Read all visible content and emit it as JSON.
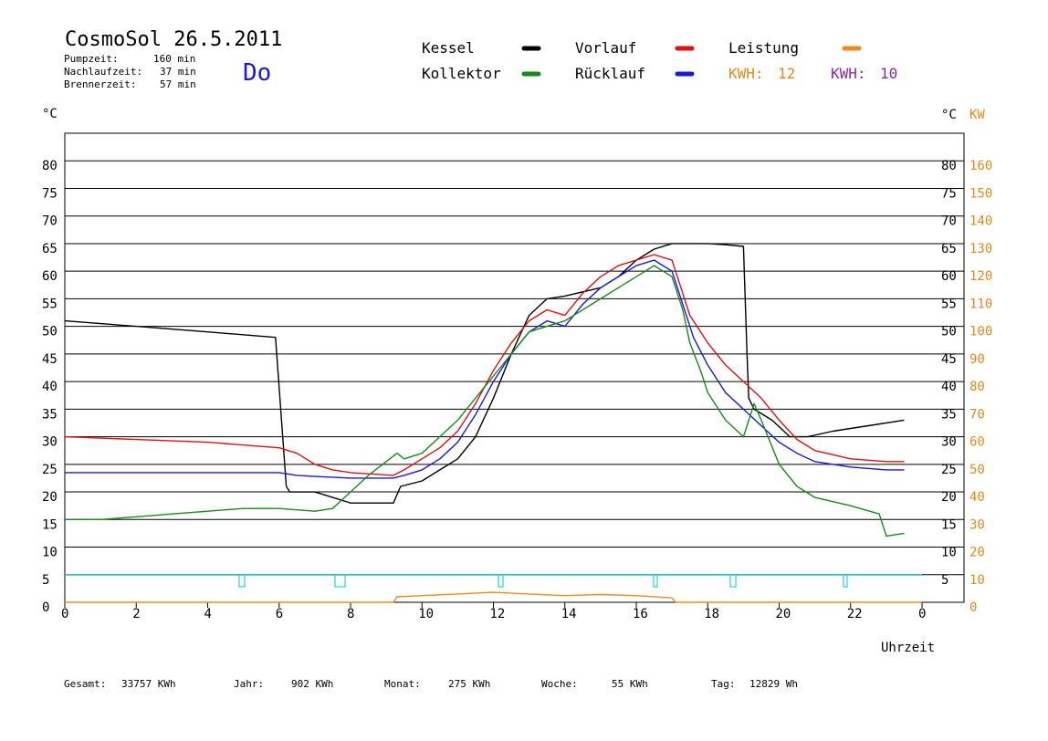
{
  "header": {
    "title": "CosmoSol 26.5.2011",
    "day": "Do",
    "stats": [
      {
        "label": "Pumpzeit:",
        "value": "160 min"
      },
      {
        "label": "Nachlaufzeit:",
        "value": "37 min"
      },
      {
        "label": "Brennerzeit:",
        "value": "57 min"
      }
    ]
  },
  "legend": {
    "items": [
      {
        "label": "Kessel",
        "color": "#000000"
      },
      {
        "label": "Vorlauf",
        "color": "#dd1111"
      },
      {
        "label": "Leistung",
        "color": "#f08a1e"
      },
      {
        "label": "Kollektor",
        "color": "#1a8a1a"
      },
      {
        "label": "Rücklauf",
        "color": "#1a1ad6"
      }
    ],
    "kwh_orange": {
      "label": "KWH:",
      "value": "12",
      "color": "#e08a1e"
    },
    "kwh_purple": {
      "label": "KWH:",
      "value": "10",
      "color": "#8a2a9a"
    }
  },
  "axes": {
    "left_unit": "°C",
    "right_unit": "°C",
    "right_unit2": "KW",
    "xlabel": "Uhrzeit",
    "x_ticks": [
      "0",
      "2",
      "4",
      "6",
      "8",
      "10",
      "12",
      "14",
      "16",
      "18",
      "20",
      "22",
      "0"
    ],
    "y_left_ticks": [
      "0",
      "5",
      "10",
      "15",
      "20",
      "25",
      "30",
      "35",
      "40",
      "45",
      "50",
      "55",
      "60",
      "65",
      "70",
      "75",
      "80"
    ],
    "y_right_ticks": [
      "5",
      "10",
      "15",
      "20",
      "25",
      "30",
      "35",
      "40",
      "45",
      "50",
      "55",
      "60",
      "65",
      "70",
      "75",
      "80"
    ],
    "y_right2_ticks": [
      "0",
      "10",
      "20",
      "30",
      "40",
      "50",
      "60",
      "70",
      "80",
      "90",
      "100",
      "110",
      "120",
      "130",
      "140",
      "150",
      "160"
    ]
  },
  "footer": [
    {
      "label": "Gesamt:",
      "value": "33757 KWh"
    },
    {
      "label": "Jahr:",
      "value": "902 KWh"
    },
    {
      "label": "Monat:",
      "value": "275 KWh"
    },
    {
      "label": "Woche:",
      "value": "55 KWh"
    },
    {
      "label": "Tag:",
      "value": "12829 Wh"
    }
  ],
  "chart_data": {
    "type": "line",
    "xlim": [
      0,
      24
    ],
    "ylim": [
      0,
      85
    ],
    "y2lim": [
      0,
      170
    ],
    "grid": true,
    "series": [
      {
        "name": "Kessel",
        "color": "#000000",
        "points": [
          [
            0,
            51
          ],
          [
            2,
            50
          ],
          [
            4,
            49
          ],
          [
            5.9,
            48
          ],
          [
            6.1,
            30
          ],
          [
            6.2,
            21
          ],
          [
            6.3,
            20
          ],
          [
            7,
            20
          ],
          [
            7.5,
            19
          ],
          [
            8,
            18
          ],
          [
            9.2,
            18
          ],
          [
            9.4,
            21
          ],
          [
            10,
            22
          ],
          [
            10.5,
            24
          ],
          [
            11,
            26
          ],
          [
            11.5,
            30
          ],
          [
            12,
            37
          ],
          [
            12.5,
            45
          ],
          [
            13,
            52
          ],
          [
            13.5,
            55
          ],
          [
            14,
            55.5
          ],
          [
            15,
            57
          ],
          [
            15.5,
            59
          ],
          [
            16,
            62
          ],
          [
            16.5,
            64
          ],
          [
            17,
            65
          ],
          [
            18,
            65
          ],
          [
            18.5,
            64.8
          ],
          [
            19,
            64.5
          ],
          [
            19.1,
            45
          ],
          [
            19.15,
            37
          ],
          [
            19.3,
            35
          ],
          [
            19.8,
            33
          ],
          [
            20.3,
            30
          ],
          [
            20.8,
            30
          ],
          [
            21.5,
            31
          ],
          [
            22.5,
            32
          ],
          [
            23.5,
            33
          ]
        ]
      },
      {
        "name": "Vorlauf",
        "color": "#dd1111",
        "points": [
          [
            0,
            30
          ],
          [
            2,
            29.5
          ],
          [
            4,
            29
          ],
          [
            6,
            28
          ],
          [
            6.5,
            27
          ],
          [
            7,
            25
          ],
          [
            7.5,
            24
          ],
          [
            8,
            23.5
          ],
          [
            9.2,
            23
          ],
          [
            9.5,
            24
          ],
          [
            10,
            26
          ],
          [
            10.5,
            28
          ],
          [
            11,
            31
          ],
          [
            11.5,
            36
          ],
          [
            12,
            42
          ],
          [
            12.5,
            47
          ],
          [
            13,
            51
          ],
          [
            13.5,
            53
          ],
          [
            14,
            52
          ],
          [
            14.5,
            56
          ],
          [
            15,
            59
          ],
          [
            15.5,
            61
          ],
          [
            16,
            62
          ],
          [
            16.5,
            63
          ],
          [
            17,
            62
          ],
          [
            17.2,
            58
          ],
          [
            17.5,
            52
          ],
          [
            18,
            47
          ],
          [
            18.5,
            43
          ],
          [
            19,
            40
          ],
          [
            19.5,
            37
          ],
          [
            20,
            33
          ],
          [
            20.5,
            29.5
          ],
          [
            21,
            27.5
          ],
          [
            22,
            26
          ],
          [
            23,
            25.5
          ],
          [
            23.5,
            25.5
          ]
        ]
      },
      {
        "name": "Rücklauf",
        "color": "#1a1ad6",
        "points": [
          [
            0,
            23.5
          ],
          [
            2,
            23.5
          ],
          [
            4,
            23.5
          ],
          [
            6,
            23.5
          ],
          [
            6.5,
            23
          ],
          [
            7,
            22.8
          ],
          [
            8,
            22.5
          ],
          [
            9.2,
            22.5
          ],
          [
            9.5,
            23
          ],
          [
            10,
            24
          ],
          [
            10.5,
            26
          ],
          [
            11,
            29
          ],
          [
            11.5,
            34
          ],
          [
            12,
            40
          ],
          [
            12.5,
            45
          ],
          [
            13,
            49
          ],
          [
            13.5,
            51
          ],
          [
            14,
            50
          ],
          [
            14.5,
            54
          ],
          [
            15,
            57
          ],
          [
            15.5,
            59
          ],
          [
            16,
            61
          ],
          [
            16.5,
            62
          ],
          [
            17,
            60
          ],
          [
            17.3,
            54
          ],
          [
            17.6,
            48
          ],
          [
            18,
            43
          ],
          [
            18.5,
            38
          ],
          [
            19,
            35
          ],
          [
            19.5,
            32
          ],
          [
            20,
            29
          ],
          [
            20.5,
            27
          ],
          [
            21,
            25.5
          ],
          [
            22,
            24.5
          ],
          [
            23,
            24
          ],
          [
            23.5,
            24
          ]
        ]
      },
      {
        "name": "Kollektor",
        "color": "#1a8a1a",
        "points": [
          [
            0,
            15
          ],
          [
            1,
            15
          ],
          [
            2,
            15.5
          ],
          [
            3,
            16
          ],
          [
            4,
            16.5
          ],
          [
            5,
            17
          ],
          [
            6,
            17
          ],
          [
            7,
            16.5
          ],
          [
            7.5,
            17
          ],
          [
            8,
            20
          ],
          [
            8.5,
            23
          ],
          [
            9,
            25.5
          ],
          [
            9.3,
            27
          ],
          [
            9.5,
            26
          ],
          [
            10,
            27
          ],
          [
            10.5,
            30
          ],
          [
            11,
            33
          ],
          [
            11.5,
            37
          ],
          [
            12,
            41
          ],
          [
            12.5,
            45
          ],
          [
            13,
            49
          ],
          [
            13.5,
            50
          ],
          [
            14,
            51
          ],
          [
            14.5,
            53
          ],
          [
            15,
            55
          ],
          [
            15.5,
            57
          ],
          [
            16,
            59
          ],
          [
            16.5,
            61
          ],
          [
            17,
            59
          ],
          [
            17.3,
            53
          ],
          [
            17.5,
            47
          ],
          [
            17.8,
            42
          ],
          [
            18,
            38
          ],
          [
            18.5,
            33
          ],
          [
            19,
            30
          ],
          [
            19.3,
            36
          ],
          [
            19.5,
            33
          ],
          [
            20,
            25
          ],
          [
            20.5,
            21
          ],
          [
            21,
            19
          ],
          [
            22,
            17.5
          ],
          [
            22.8,
            16
          ],
          [
            23,
            12
          ],
          [
            23.5,
            12.5
          ]
        ]
      },
      {
        "name": "Leistung",
        "color": "#f08a1e",
        "points": [
          [
            0,
            0
          ],
          [
            9.2,
            0
          ],
          [
            9.3,
            1
          ],
          [
            10,
            1.2
          ],
          [
            11,
            1.5
          ],
          [
            12,
            1.8
          ],
          [
            13,
            1.5
          ],
          [
            14,
            1.2
          ],
          [
            15,
            1.4
          ],
          [
            16,
            1.2
          ],
          [
            17,
            0.8
          ],
          [
            17.1,
            0
          ],
          [
            24,
            0
          ]
        ]
      }
    ]
  }
}
